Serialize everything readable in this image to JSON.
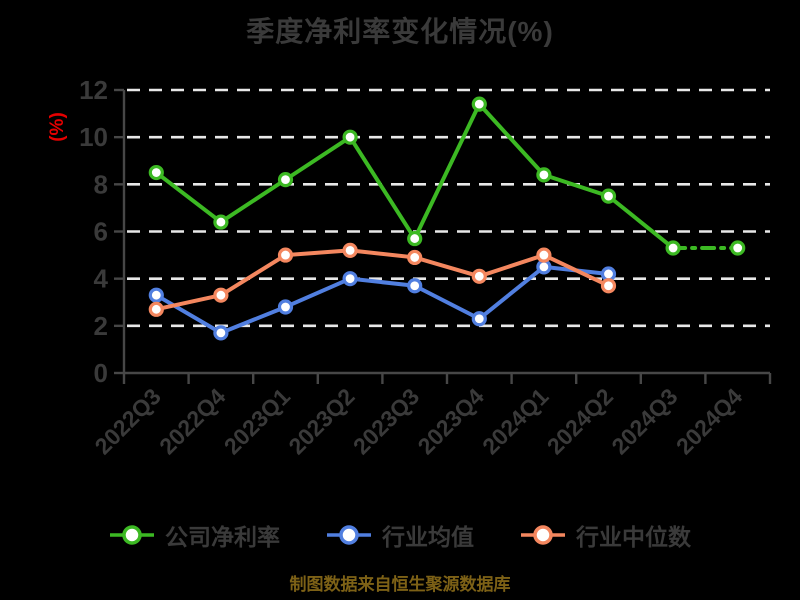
{
  "title": "季度净利率变化情况(%)",
  "chart_data": {
    "type": "line",
    "title": "季度净利率变化情况(%)",
    "xlabel": "",
    "ylabel": "(%)",
    "ylabel_color": "#e60000",
    "categories": [
      "2022Q3",
      "2022Q4",
      "2023Q1",
      "2023Q2",
      "2023Q3",
      "2023Q4",
      "2024Q1",
      "2024Q2",
      "2024Q3",
      "2024Q4"
    ],
    "series": [
      {
        "name": "公司净利率",
        "color": "#3cb923",
        "values": [
          8.5,
          6.4,
          8.2,
          10.0,
          5.7,
          11.4,
          8.4,
          7.5,
          5.3,
          5.3
        ],
        "dashed_segment_start": 8
      },
      {
        "name": "行业均值",
        "color": "#517fe0",
        "values": [
          3.3,
          1.7,
          2.8,
          4.0,
          3.7,
          2.3,
          4.5,
          4.2,
          null,
          null
        ],
        "dashed_segment_start": null
      },
      {
        "name": "行业中位数",
        "color": "#f4875f",
        "values": [
          2.7,
          3.3,
          5.0,
          5.2,
          4.9,
          4.1,
          5.0,
          3.7,
          null,
          null
        ],
        "dashed_segment_start": null
      }
    ],
    "ylim": [
      0,
      12
    ],
    "ytick_step": 2,
    "ytick_labels": [
      "0",
      "2",
      "4",
      "6",
      "8",
      "10",
      "12"
    ],
    "grid": "horizontal-dashed",
    "grid_color": "#e8e8e8",
    "axis_color": "#474747",
    "tick_label_color": "#3a3a3a",
    "marker": {
      "fill": "#ffffff",
      "radius": 6,
      "stroke_width": 3.2
    },
    "line_width": 4,
    "legend_position": "bottom",
    "background": "#000000"
  },
  "legend": {
    "items": [
      {
        "label": "公司净利率",
        "color": "#3cb923"
      },
      {
        "label": "行业均值",
        "color": "#517fe0"
      },
      {
        "label": "行业中位数",
        "color": "#f4875f"
      }
    ]
  },
  "footer": {
    "text": "制图数据来自恒生聚源数据库"
  }
}
